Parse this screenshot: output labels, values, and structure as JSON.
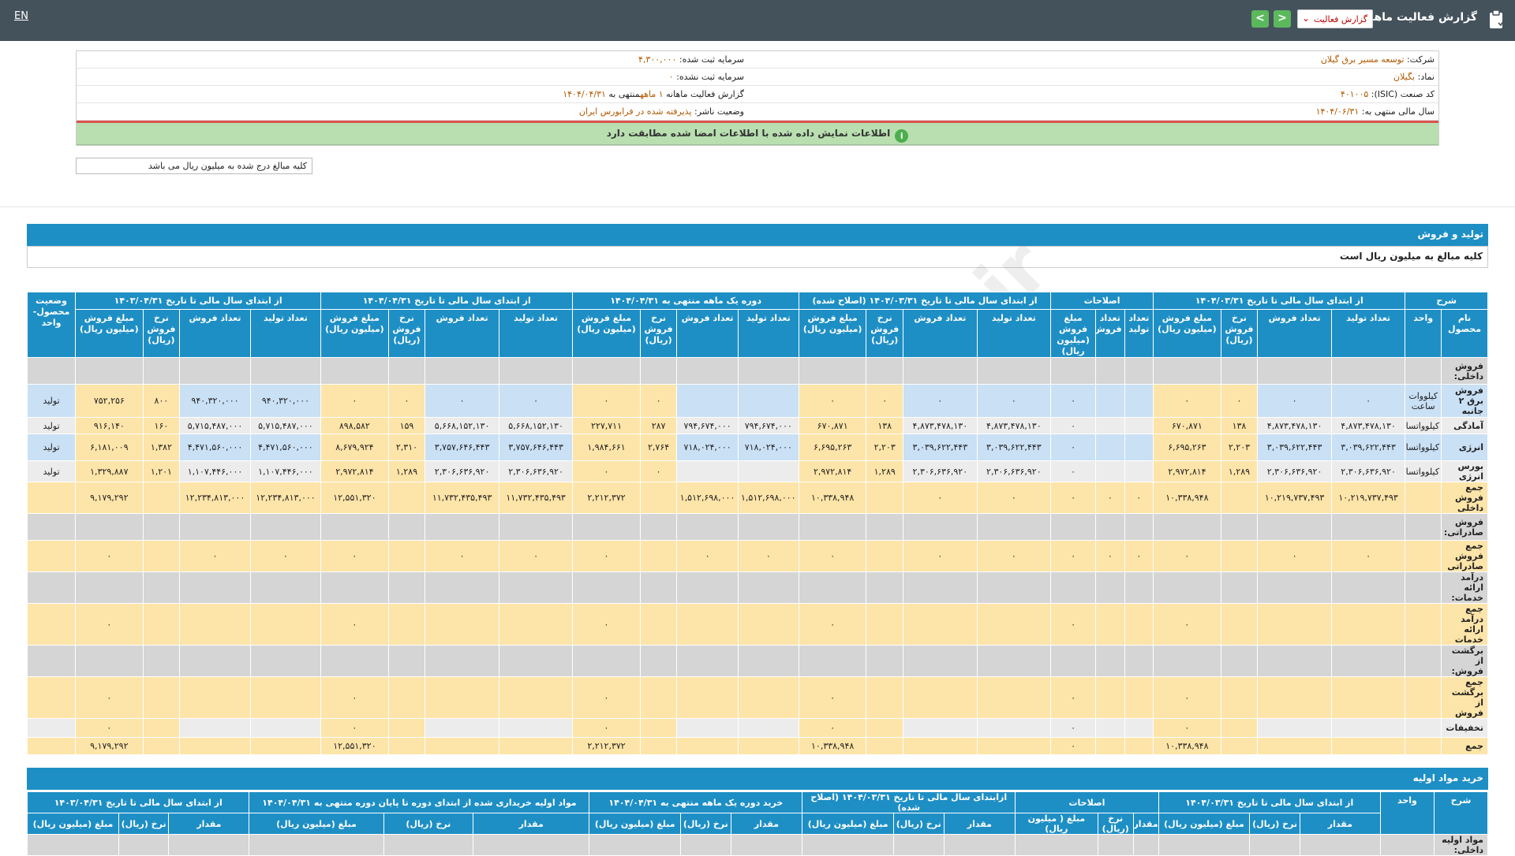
{
  "topbar": {
    "lang": "EN",
    "title": "گزارش فعالیت ماهانه",
    "select_value": "گزارش فعالیت",
    "prev": "<",
    "next": ">"
  },
  "company_info": {
    "company_label": "شرکت:",
    "company_value": "توسعه مسیر برق گیلان",
    "symbol_label": "نماد:",
    "symbol_value": "بگیلان",
    "isic_label": "کد صنعت (ISIC):",
    "isic_value": "۴۰۱۰۰۵",
    "fy_label": "سال مالی منتهی به:",
    "fy_value": "۱۴۰۴/۰۶/۳۱",
    "cap_label": "سرمایه ثبت شده:",
    "cap_value": "۴,۳۰۰,۰۰۰",
    "uncap_label": "سرمایه ثبت نشده:",
    "uncap_value": "۰",
    "report_label": "گزارش فعالیت ماهانه",
    "report_value": "۱ ماهه",
    "report_mid": "منتهی به",
    "report_date": "۱۴۰۴/۰۴/۳۱",
    "status_label": "وضعیت ناشر:",
    "status_value": "پذیرفته شده در فرابورس ایران"
  },
  "alert": "اطلاعات نمایش داده شده با اطلاعات امضا شده مطابقت دارد",
  "note": "کلیه مبالغ درج شده به میلیون ریال می باشد",
  "watermark": "@Codal360.ir",
  "production": {
    "section_title": "تولید و فروش",
    "sub_title": "کلیه مبالغ به میلیون ریال است",
    "group_headers": [
      "شرح",
      "از ابتدای سال مالی تا تاریخ ۱۴۰۴/۰۳/۳۱",
      "اصلاحات",
      "از ابتدای سال مالی تا تاریخ ۱۴۰۴/۰۳/۳۱ (اصلاح شده)",
      "دوره یک ماهه منتهی به ۱۴۰۴/۰۴/۳۱",
      "از ابتدای سال مالی تا تاریخ ۱۴۰۴/۰۴/۳۱",
      "از ابتدای سال مالی تا تاریخ ۱۴۰۳/۰۴/۳۱",
      "وضعیت محصول- واحد"
    ],
    "sub_headers": [
      "نام محصول",
      "واحد",
      "تعداد تولید",
      "تعداد فروش",
      "نرخ فروش (ریال)",
      "مبلغ فروش (میلیون ریال)",
      "تعداد تولید",
      "تعداد فروش",
      "مبلغ فروش (میلیون ریال)",
      "تعداد تولید",
      "تعداد فروش",
      "نرخ فروش (ریال)",
      "مبلغ فروش (میلیون ریال)",
      "تعداد تولید",
      "تعداد فروش",
      "نرخ فروش (ریال)",
      "مبلغ فروش (میلیون ریال)",
      "تعداد تولید",
      "تعداد فروش",
      "نرخ فروش (ریال)",
      "مبلغ فروش (میلیون ریال)",
      "تعداد تولید",
      "تعداد فروش",
      "نرخ فروش (ریال)",
      "مبلغ فروش (میلیون ریال)"
    ],
    "rows": [
      {
        "style": "grey",
        "cells": [
          "فروش داخلی:",
          "",
          "",
          "",
          "",
          "",
          "",
          "",
          "",
          "",
          "",
          "",
          "",
          "",
          "",
          "",
          "",
          "",
          "",
          "",
          "",
          "",
          "",
          "",
          "",
          ""
        ]
      },
      {
        "style": "blu",
        "cells": [
          "فروش برق ۲ جانبه",
          "کیلووات ساعت",
          "۰",
          "۰",
          "۰",
          "۰",
          "",
          "",
          "۰",
          "۰",
          "۰",
          "۰",
          "۰",
          "",
          "",
          "۰",
          "۰",
          "۰",
          "۰",
          "۰",
          "۰",
          "۹۴۰,۳۲۰,۰۰۰",
          "۹۴۰,۳۲۰,۰۰۰",
          "۸۰۰",
          "۷۵۲,۲۵۶",
          "تولید"
        ]
      },
      {
        "style": "lg",
        "cells": [
          "آمادگی",
          "کیلوواتساعت",
          "۴,۸۷۳,۴۷۸,۱۳۰",
          "۴,۸۷۳,۴۷۸,۱۳۰",
          "۱۳۸",
          "۶۷۰,۸۷۱",
          "",
          "",
          "۰",
          "۴,۸۷۳,۴۷۸,۱۳۰",
          "۴,۸۷۳,۴۷۸,۱۳۰",
          "۱۳۸",
          "۶۷۰,۸۷۱",
          "۷۹۴,۶۷۴,۰۰۰",
          "۷۹۴,۶۷۴,۰۰۰",
          "۲۸۷",
          "۲۲۷,۷۱۱",
          "۵,۶۶۸,۱۵۲,۱۳۰",
          "۵,۶۶۸,۱۵۲,۱۳۰",
          "۱۵۹",
          "۸۹۸,۵۸۲",
          "۵,۷۱۵,۴۸۷,۰۰۰",
          "۵,۷۱۵,۴۸۷,۰۰۰",
          "۱۶۰",
          "۹۱۶,۱۴۰",
          "تولید"
        ]
      },
      {
        "style": "blu",
        "cells": [
          "انرژی",
          "کیلوواتساعت",
          "۳,۰۳۹,۶۲۲,۴۴۳",
          "۳,۰۳۹,۶۲۲,۴۴۳",
          "۲,۲۰۳",
          "۶,۶۹۵,۲۶۳",
          "",
          "",
          "۰",
          "۳,۰۳۹,۶۲۲,۴۴۳",
          "۳,۰۳۹,۶۲۲,۴۴۳",
          "۲,۲۰۳",
          "۶,۶۹۵,۲۶۳",
          "۷۱۸,۰۲۴,۰۰۰",
          "۷۱۸,۰۲۴,۰۰۰",
          "۲,۷۶۴",
          "۱,۹۸۴,۶۶۱",
          "۳,۷۵۷,۶۴۶,۴۴۳",
          "۳,۷۵۷,۶۴۶,۴۴۳",
          "۲,۳۱۰",
          "۸,۶۷۹,۹۲۴",
          "۴,۴۷۱,۵۶۰,۰۰۰",
          "۴,۴۷۱,۵۶۰,۰۰۰",
          "۱,۳۸۲",
          "۶,۱۸۱,۰۰۹",
          "تولید"
        ]
      },
      {
        "style": "lg",
        "cells": [
          "بورس انرژی",
          "کیلوواتساعت",
          "۲,۳۰۶,۶۳۶,۹۲۰",
          "۲,۳۰۶,۶۳۶,۹۲۰",
          "۱,۲۸۹",
          "۲,۹۷۲,۸۱۴",
          "",
          "",
          "۰",
          "۲,۳۰۶,۶۳۶,۹۲۰",
          "۲,۳۰۶,۶۳۶,۹۲۰",
          "۱,۲۸۹",
          "۲,۹۷۲,۸۱۴",
          "",
          "",
          "۰",
          "۰",
          "۲,۳۰۶,۶۳۶,۹۲۰",
          "۲,۳۰۶,۶۳۶,۹۲۰",
          "۱,۲۸۹",
          "۲,۹۷۲,۸۱۴",
          "۱,۱۰۷,۴۴۶,۰۰۰",
          "۱,۱۰۷,۴۴۶,۰۰۰",
          "۱,۲۰۱",
          "۱,۳۲۹,۸۸۷",
          "تولید"
        ]
      },
      {
        "style": "yel",
        "cells": [
          "جمع فروش داخلی",
          "",
          "۱۰,۲۱۹,۷۳۷,۴۹۳",
          "۱۰,۲۱۹,۷۳۷,۴۹۳",
          "",
          "۱۰,۳۳۸,۹۴۸",
          "۰",
          "۰",
          "۰",
          "۰",
          "۰",
          "",
          "۱۰,۳۳۸,۹۴۸",
          "۱,۵۱۲,۶۹۸,۰۰۰",
          "۱,۵۱۲,۶۹۸,۰۰۰",
          "",
          "۲,۲۱۲,۳۷۲",
          "۱۱,۷۳۲,۴۳۵,۴۹۳",
          "۱۱,۷۳۲,۴۳۵,۴۹۳",
          "",
          "۱۲,۵۵۱,۳۲۰",
          "۱۲,۲۳۴,۸۱۳,۰۰۰",
          "۱۲,۲۳۴,۸۱۳,۰۰۰",
          "",
          "۹,۱۷۹,۲۹۲",
          ""
        ]
      },
      {
        "style": "grey",
        "cells": [
          "فروش صادراتی:",
          "",
          "",
          "",
          "",
          "",
          "",
          "",
          "",
          "",
          "",
          "",
          "",
          "",
          "",
          "",
          "",
          "",
          "",
          "",
          "",
          "",
          "",
          "",
          "",
          ""
        ]
      },
      {
        "style": "yel",
        "cells": [
          "جمع فروش صادراتی",
          "",
          "۰",
          "۰",
          "",
          "۰",
          "۰",
          "۰",
          "۰",
          "۰",
          "۰",
          "",
          "۰",
          "۰",
          "۰",
          "",
          "۰",
          "۰",
          "۰",
          "",
          "۰",
          "۰",
          "۰",
          "",
          "۰",
          ""
        ]
      },
      {
        "style": "grey",
        "cells": [
          "درآمد ارائه خدمات:",
          "",
          "",
          "",
          "",
          "",
          "",
          "",
          "",
          "",
          "",
          "",
          "",
          "",
          "",
          "",
          "",
          "",
          "",
          "",
          "",
          "",
          "",
          "",
          "",
          ""
        ]
      },
      {
        "style": "yel",
        "cells": [
          "جمع درآمد ارائه خدمات",
          "",
          "",
          "",
          "",
          "۰",
          "",
          "",
          "۰",
          "",
          "",
          "",
          "۰",
          "",
          "",
          "",
          "۰",
          "",
          "",
          "",
          "۰",
          "",
          "",
          "",
          "۰",
          ""
        ]
      },
      {
        "style": "grey",
        "cells": [
          "برگشت از فروش:",
          "",
          "",
          "",
          "",
          "",
          "",
          "",
          "",
          "",
          "",
          "",
          "",
          "",
          "",
          "",
          "",
          "",
          "",
          "",
          "",
          "",
          "",
          "",
          "",
          ""
        ]
      },
      {
        "style": "yel",
        "cells": [
          "جمع برگشت از فروش",
          "",
          "",
          "",
          "",
          "۰",
          "",
          "",
          "۰",
          "",
          "",
          "",
          "۰",
          "",
          "",
          "",
          "۰",
          "",
          "",
          "",
          "۰",
          "",
          "",
          "",
          "۰",
          ""
        ]
      },
      {
        "style": "lg",
        "cells": [
          "تخفیفات",
          "",
          "",
          "",
          "",
          "۰",
          "",
          "",
          "۰",
          "",
          "",
          "",
          "۰",
          "",
          "",
          "",
          "۰",
          "",
          "",
          "",
          "۰",
          "",
          "",
          "",
          "۰",
          ""
        ]
      },
      {
        "style": "yel",
        "cells": [
          "جمع",
          "",
          "",
          "",
          "",
          "۱۰,۳۳۸,۹۴۸",
          "",
          "",
          "۰",
          "",
          "",
          "",
          "۱۰,۳۳۸,۹۴۸",
          "",
          "",
          "",
          "۲,۲۱۲,۳۷۲",
          "",
          "",
          "",
          "۱۲,۵۵۱,۳۲۰",
          "",
          "",
          "",
          "۹,۱۷۹,۲۹۲",
          ""
        ]
      }
    ]
  },
  "raw_materials": {
    "section_title": "خرید مواد اولیه",
    "group_headers": [
      "شرح",
      "واحد",
      "از ابتدای سال مالی تا تاریخ ۱۴۰۴/۰۳/۳۱",
      "اصلاحات",
      "ازابتدای سال مالی تا تاریخ ۱۴۰۴/۰۳/۳۱ (اصلاح شده)",
      "خرید دوره یک ماهه منتهی به ۱۴۰۴/۰۴/۳۱",
      "مواد اولیه خریداری شده از ابتدای دوره تا پایان دوره منتهی به ۱۴۰۴/۰۴/۳۱",
      "از ابتدای سال مالی تا تاریخ ۱۴۰۳/۰۴/۳۱"
    ],
    "sub_headers": [
      "مقدار",
      "نرخ (ریال)",
      "مبلغ (میلیون ریال)",
      "مقدار",
      "نرخ (ریال)",
      "مبلغ ( میلیون ریال)",
      "مقدار",
      "نرخ (ریال)",
      "مبلغ (میلیون ریال)",
      "مقدار",
      "نرخ (ریال)",
      "مبلغ (میلیون ریال)",
      "مقدار",
      "نرخ (ریال)",
      "مبلغ (میلیون ریال)",
      "مقدار",
      "نرخ (ریال)",
      "مبلغ (میلیون ریال)"
    ],
    "first_row": "مواد اولیه داخلی:"
  }
}
